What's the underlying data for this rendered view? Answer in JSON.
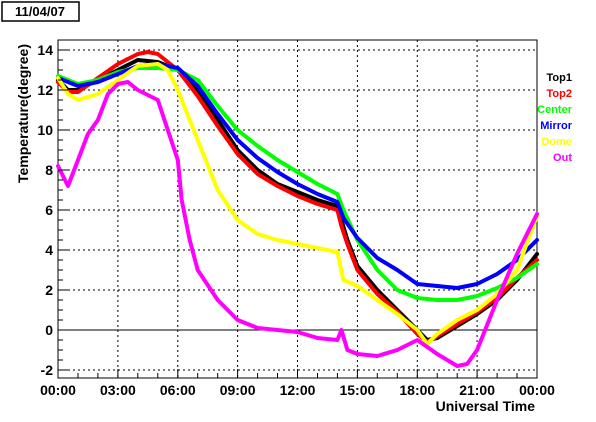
{
  "chart_data": {
    "type": "line",
    "title": "11/04/07",
    "xlabel": "Universal Time",
    "ylabel": "Temperature(degree)",
    "xlim": [
      0,
      24
    ],
    "ylim": [
      -2.4,
      14.5
    ],
    "grid": true,
    "legend_position": "right",
    "zero_line": 0,
    "x_ticks": [
      {
        "value": 0,
        "label": "00:00"
      },
      {
        "value": 3,
        "label": "03:00"
      },
      {
        "value": 6,
        "label": "06:00"
      },
      {
        "value": 9,
        "label": "09:00"
      },
      {
        "value": 12,
        "label": "12:00"
      },
      {
        "value": 15,
        "label": "15:00"
      },
      {
        "value": 18,
        "label": "18:00"
      },
      {
        "value": 21,
        "label": "21:00"
      },
      {
        "value": 24,
        "label": "00:00"
      }
    ],
    "y_ticks": [
      {
        "value": -2,
        "label": "-2"
      },
      {
        "value": 0,
        "label": "0"
      },
      {
        "value": 2,
        "label": "2"
      },
      {
        "value": 4,
        "label": "4"
      },
      {
        "value": 6,
        "label": "6"
      },
      {
        "value": 8,
        "label": "8"
      },
      {
        "value": 10,
        "label": "10"
      },
      {
        "value": 12,
        "label": "12"
      },
      {
        "value": 14,
        "label": "14"
      }
    ],
    "series": [
      {
        "name": "Top1",
        "color": "#000000",
        "points": [
          [
            0,
            12.5
          ],
          [
            0.5,
            12.0
          ],
          [
            1,
            12.0
          ],
          [
            2,
            12.5
          ],
          [
            3,
            13.0
          ],
          [
            4,
            13.5
          ],
          [
            5,
            13.4
          ],
          [
            6,
            13.0
          ],
          [
            7,
            12.0
          ],
          [
            8,
            10.5
          ],
          [
            9,
            9.0
          ],
          [
            10,
            8.0
          ],
          [
            11,
            7.3
          ],
          [
            12,
            6.9
          ],
          [
            13,
            6.5
          ],
          [
            14,
            6.2
          ],
          [
            14.2,
            5.5
          ],
          [
            14.5,
            4.5
          ],
          [
            15,
            3.2
          ],
          [
            16,
            2.0
          ],
          [
            17,
            1.0
          ],
          [
            18,
            0.0
          ],
          [
            18.5,
            -0.5
          ],
          [
            19,
            -0.4
          ],
          [
            20,
            0.2
          ],
          [
            21,
            0.8
          ],
          [
            22,
            1.5
          ],
          [
            23,
            2.5
          ],
          [
            24,
            3.8
          ]
        ]
      },
      {
        "name": "Top2",
        "color": "#ff0000",
        "points": [
          [
            0,
            12.4
          ],
          [
            0.5,
            11.9
          ],
          [
            1,
            11.9
          ],
          [
            2,
            12.6
          ],
          [
            3,
            13.3
          ],
          [
            4,
            13.8
          ],
          [
            4.5,
            13.9
          ],
          [
            5,
            13.8
          ],
          [
            6,
            13.0
          ],
          [
            7,
            11.7
          ],
          [
            8,
            10.2
          ],
          [
            9,
            8.8
          ],
          [
            10,
            7.8
          ],
          [
            11,
            7.2
          ],
          [
            12,
            6.7
          ],
          [
            13,
            6.3
          ],
          [
            14,
            6.0
          ],
          [
            14.2,
            5.2
          ],
          [
            14.5,
            4.3
          ],
          [
            15,
            3.0
          ],
          [
            16,
            1.8
          ],
          [
            17,
            0.9
          ],
          [
            18,
            -0.2
          ],
          [
            18.5,
            -0.6
          ],
          [
            19,
            -0.3
          ],
          [
            20,
            0.3
          ],
          [
            21,
            0.9
          ],
          [
            22,
            1.6
          ],
          [
            23,
            2.6
          ],
          [
            24,
            3.5
          ]
        ]
      },
      {
        "name": "Center",
        "color": "#00ff00",
        "points": [
          [
            0,
            12.7
          ],
          [
            1,
            12.3
          ],
          [
            2,
            12.5
          ],
          [
            3,
            12.9
          ],
          [
            4,
            13.1
          ],
          [
            5,
            13.1
          ],
          [
            6,
            13.0
          ],
          [
            7,
            12.5
          ],
          [
            8,
            11.2
          ],
          [
            9,
            10.0
          ],
          [
            10,
            9.2
          ],
          [
            11,
            8.5
          ],
          [
            12,
            7.9
          ],
          [
            13,
            7.3
          ],
          [
            14,
            6.8
          ],
          [
            14.3,
            6.0
          ],
          [
            15,
            4.5
          ],
          [
            16,
            3.0
          ],
          [
            17,
            2.0
          ],
          [
            18,
            1.6
          ],
          [
            19,
            1.5
          ],
          [
            20,
            1.5
          ],
          [
            21,
            1.7
          ],
          [
            22,
            2.1
          ],
          [
            23,
            2.6
          ],
          [
            24,
            3.3
          ]
        ]
      },
      {
        "name": "Mirror",
        "color": "#0000ff",
        "points": [
          [
            0,
            12.6
          ],
          [
            1,
            12.2
          ],
          [
            2,
            12.4
          ],
          [
            3,
            12.8
          ],
          [
            4,
            13.2
          ],
          [
            5,
            13.3
          ],
          [
            6,
            13.1
          ],
          [
            7,
            12.2
          ],
          [
            8,
            10.8
          ],
          [
            9,
            9.5
          ],
          [
            10,
            8.6
          ],
          [
            11,
            7.9
          ],
          [
            12,
            7.3
          ],
          [
            13,
            6.8
          ],
          [
            14,
            6.4
          ],
          [
            14.3,
            5.6
          ],
          [
            15,
            4.6
          ],
          [
            16,
            3.6
          ],
          [
            17,
            3.0
          ],
          [
            18,
            2.3
          ],
          [
            19,
            2.2
          ],
          [
            20,
            2.1
          ],
          [
            21,
            2.3
          ],
          [
            22,
            2.8
          ],
          [
            23,
            3.5
          ],
          [
            24,
            4.5
          ]
        ]
      },
      {
        "name": "Dome",
        "color": "#ffff00",
        "points": [
          [
            0,
            12.6
          ],
          [
            0.5,
            11.8
          ],
          [
            1,
            11.5
          ],
          [
            2,
            11.8
          ],
          [
            3,
            12.5
          ],
          [
            4,
            13.2
          ],
          [
            5,
            13.3
          ],
          [
            5.5,
            13.0
          ],
          [
            6,
            12.0
          ],
          [
            7,
            9.5
          ],
          [
            8,
            7.0
          ],
          [
            9,
            5.5
          ],
          [
            10,
            4.8
          ],
          [
            11,
            4.5
          ],
          [
            12,
            4.3
          ],
          [
            13,
            4.1
          ],
          [
            14,
            3.9
          ],
          [
            14.3,
            2.5
          ],
          [
            15,
            2.2
          ],
          [
            16,
            1.5
          ],
          [
            17,
            0.8
          ],
          [
            18,
            0.0
          ],
          [
            18.5,
            -0.7
          ],
          [
            19,
            -0.2
          ],
          [
            20,
            0.5
          ],
          [
            21,
            1.0
          ],
          [
            22,
            1.8
          ],
          [
            23,
            3.0
          ],
          [
            24,
            5.7
          ]
        ]
      },
      {
        "name": "Out",
        "color": "#ff00ff",
        "points": [
          [
            0,
            8.2
          ],
          [
            0.5,
            7.2
          ],
          [
            1,
            8.5
          ],
          [
            1.5,
            9.8
          ],
          [
            2,
            10.5
          ],
          [
            2.5,
            11.8
          ],
          [
            3,
            12.3
          ],
          [
            3.5,
            12.4
          ],
          [
            4,
            12.0
          ],
          [
            5,
            11.5
          ],
          [
            5.5,
            10.0
          ],
          [
            6,
            8.5
          ],
          [
            6.2,
            6.5
          ],
          [
            6.6,
            4.5
          ],
          [
            7,
            3.0
          ],
          [
            8,
            1.5
          ],
          [
            9,
            0.5
          ],
          [
            10,
            0.1
          ],
          [
            11,
            0.0
          ],
          [
            12,
            -0.1
          ],
          [
            13,
            -0.4
          ],
          [
            14,
            -0.5
          ],
          [
            14.2,
            0.0
          ],
          [
            14.5,
            -1.0
          ],
          [
            15,
            -1.2
          ],
          [
            16,
            -1.3
          ],
          [
            17,
            -1.0
          ],
          [
            18,
            -0.5
          ],
          [
            19,
            -1.2
          ],
          [
            20,
            -1.8
          ],
          [
            20.5,
            -1.7
          ],
          [
            21,
            -1.0
          ],
          [
            22,
            1.5
          ],
          [
            23,
            3.8
          ],
          [
            24,
            5.8
          ]
        ]
      }
    ]
  }
}
